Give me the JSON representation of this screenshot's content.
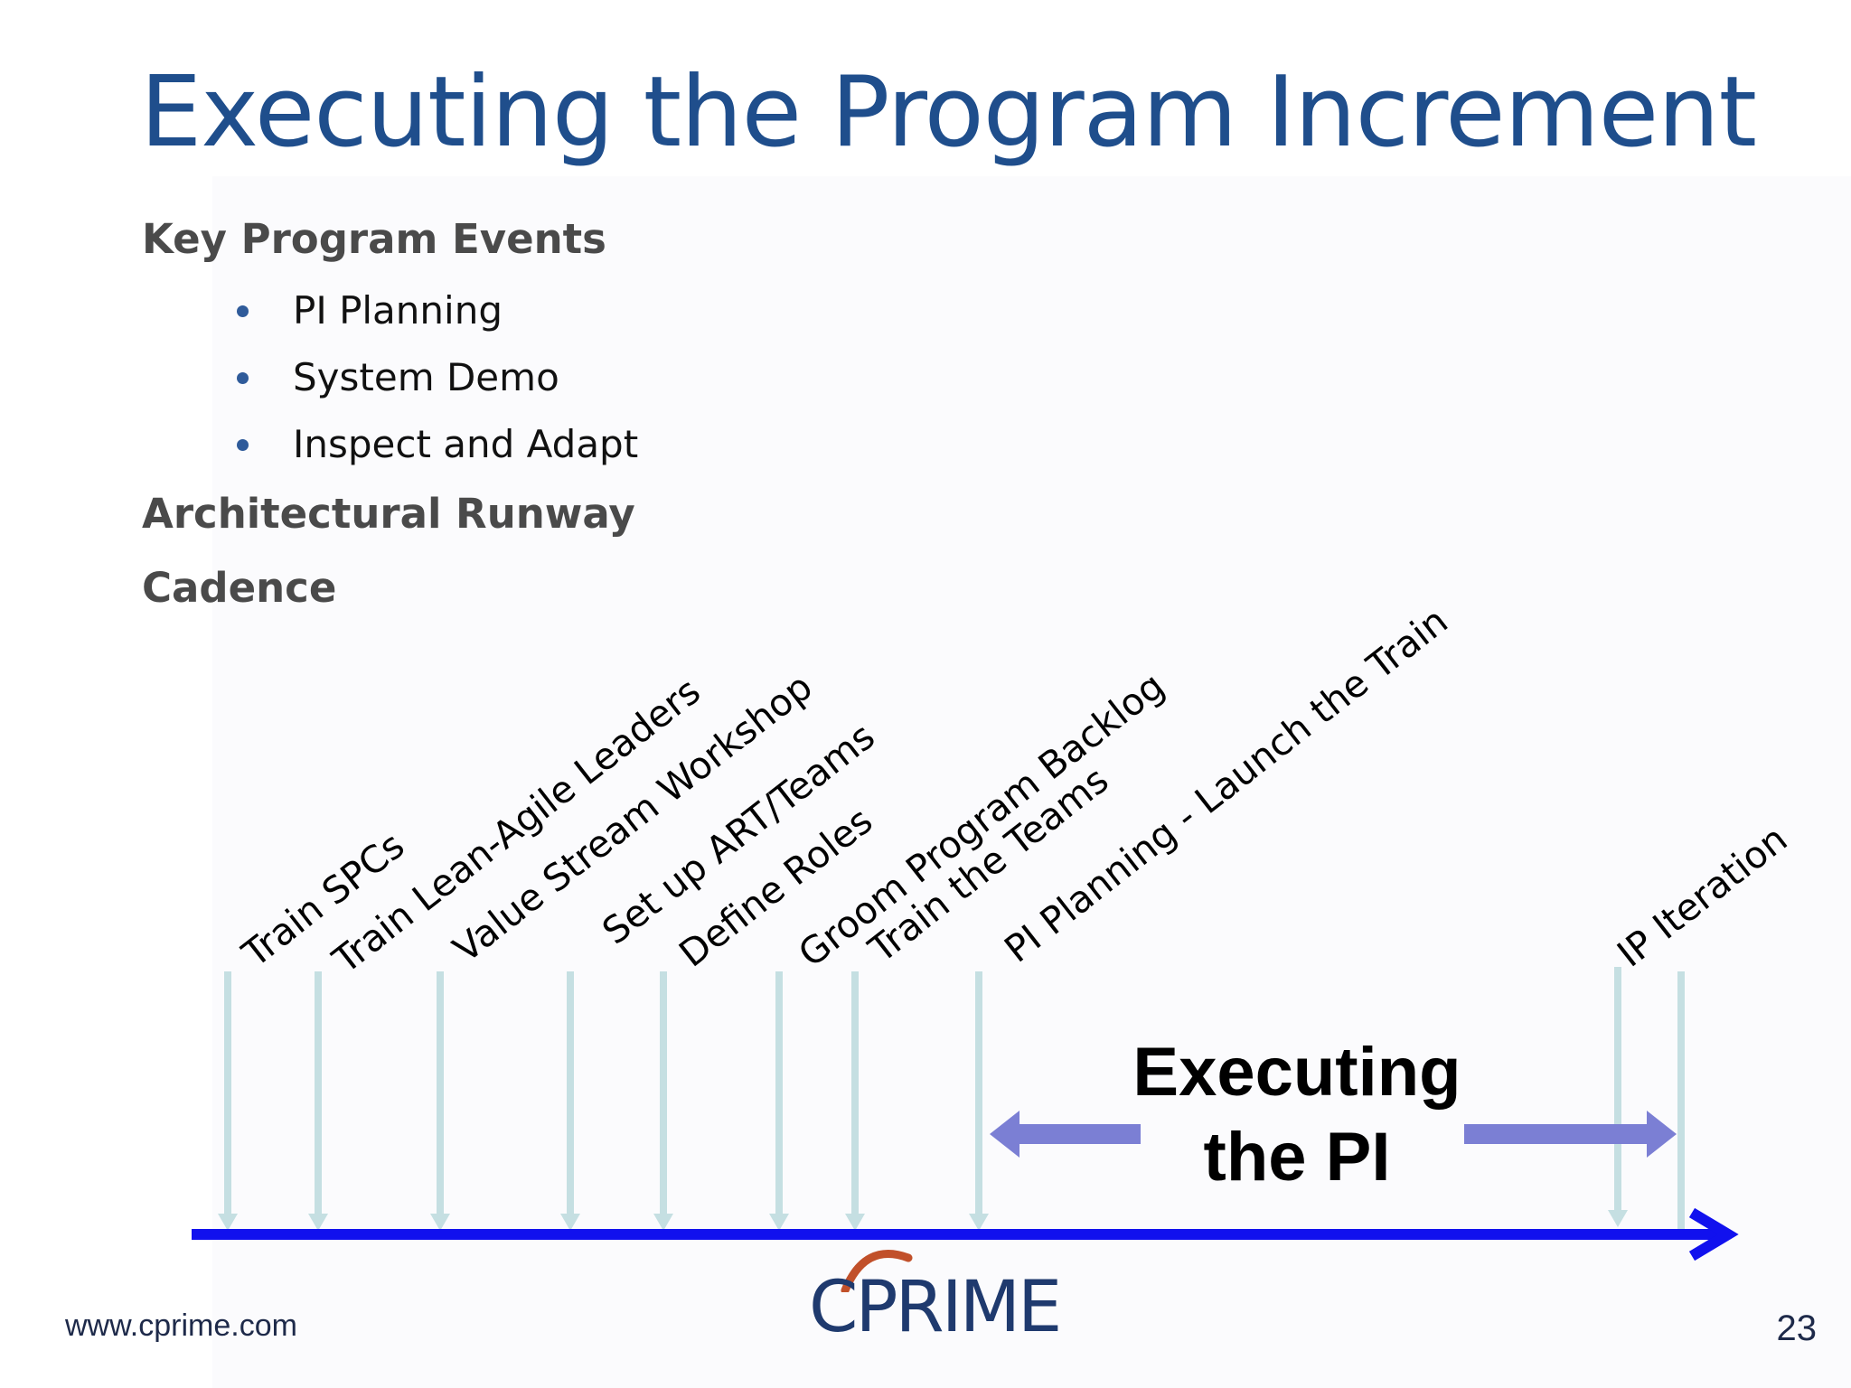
{
  "slide": {
    "title": "Executing the Program Increment",
    "page_number": "23",
    "footer_url": "www.cprime.com",
    "logo_text": "CPRIME"
  },
  "content": {
    "key_events_heading": "Key Program Events",
    "key_events": [
      "PI Planning",
      "System Demo",
      "Inspect and Adapt"
    ],
    "architectural_runway": "Architectural Runway",
    "cadence": "Cadence"
  },
  "timeline": {
    "events": [
      "Train SPCs",
      "Train Lean-Agile  Leaders",
      "Value Stream Workshop",
      "Set up ART/Teams",
      "Define Roles",
      "Groom Program Backlog",
      "Train the Teams",
      "PI Planning - Launch the Train",
      "IP Iteration"
    ],
    "executing_label_line1": "Executing",
    "executing_label_line2": "the PI"
  },
  "colors": {
    "title": "#1f4e8c",
    "heading": "#4a4a4a",
    "bullet": "#2f5b9a",
    "timeline_axis": "#1111ee",
    "event_arrows": "#c5dfe2",
    "execution_arrows": "#7b7fd4",
    "logo_arc": "#c1502a",
    "logo_text": "#1f3a6e"
  }
}
